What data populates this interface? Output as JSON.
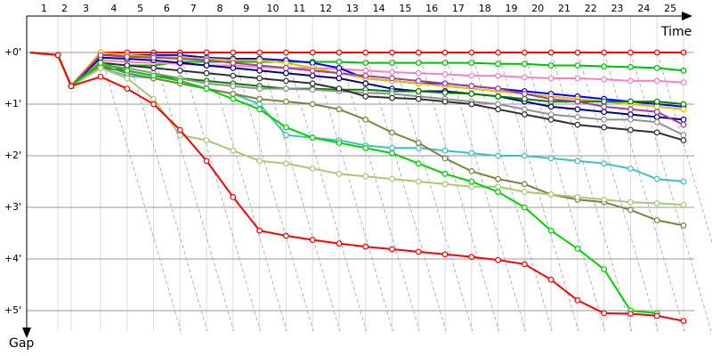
{
  "chart_data": {
    "type": "line",
    "x_label": "Time",
    "y_label": "Gap",
    "categories": [
      "1",
      "2",
      "3",
      "4",
      "5",
      "6",
      "7",
      "8",
      "9",
      "10",
      "11",
      "12",
      "13",
      "14",
      "15",
      "16",
      "17",
      "18",
      "19",
      "20",
      "21",
      "22",
      "23",
      "24",
      "25"
    ],
    "ylim": [
      -0.5,
      5.5
    ],
    "yticks": [
      {
        "value": 0,
        "label": "+0'"
      },
      {
        "value": 1,
        "label": "+1'"
      },
      {
        "value": 2,
        "label": "+2'"
      },
      {
        "value": 3,
        "label": "+3'"
      },
      {
        "value": 4,
        "label": "+4'"
      },
      {
        "value": 5,
        "label": "+5'"
      }
    ],
    "grid": true,
    "series": [
      {
        "color": "#ff0000",
        "values": [
          0.05,
          0.65,
          0,
          0,
          0,
          0,
          0,
          0,
          0,
          0,
          0,
          0,
          0,
          0,
          0,
          0,
          0,
          0,
          0,
          0,
          0,
          0,
          0,
          0,
          0
        ]
      },
      {
        "color": "#00c000",
        "values": [
          0.05,
          0.65,
          0.2,
          0.25,
          0.25,
          0.18,
          0.18,
          0.18,
          0.18,
          0.18,
          0.18,
          0.18,
          0.2,
          0.2,
          0.2,
          0.2,
          0.2,
          0.22,
          0.22,
          0.25,
          0.25,
          0.27,
          0.28,
          0.3,
          0.35
        ]
      },
      {
        "color": "#ff80c0",
        "values": [
          0.05,
          0.65,
          0.15,
          0.18,
          0.2,
          0.22,
          0.25,
          0.25,
          0.28,
          0.3,
          0.3,
          0.32,
          0.35,
          0.38,
          0.4,
          0.42,
          0.45,
          0.45,
          0.48,
          0.5,
          0.5,
          0.52,
          0.55,
          0.55,
          0.58
        ]
      },
      {
        "color": "#0000ff",
        "values": [
          0.05,
          0.65,
          0.05,
          0.05,
          0.05,
          0.05,
          0.1,
          0.12,
          0.12,
          0.15,
          0.2,
          0.3,
          0.5,
          0.55,
          0.6,
          0.6,
          0.65,
          0.7,
          0.75,
          0.8,
          0.85,
          0.9,
          0.95,
          1.0,
          1.05
        ]
      },
      {
        "color": "#e0c000",
        "values": [
          0.05,
          0.65,
          0,
          0.05,
          0.08,
          0.1,
          0.12,
          0.15,
          0.15,
          0.2,
          0.3,
          0.4,
          0.5,
          0.55,
          0.6,
          0.65,
          0.7,
          0.75,
          0.8,
          0.85,
          0.9,
          0.95,
          1.0,
          1.05,
          1.1
        ]
      },
      {
        "color": "#000080",
        "values": [
          0.05,
          0.65,
          0.1,
          0.12,
          0.15,
          0.2,
          0.25,
          0.3,
          0.35,
          0.4,
          0.45,
          0.5,
          0.6,
          0.7,
          0.75,
          0.75,
          0.8,
          0.85,
          0.95,
          1.05,
          1.1,
          1.15,
          1.2,
          1.25,
          1.3
        ]
      },
      {
        "color": "#008000",
        "values": [
          0.05,
          0.65,
          0.3,
          0.35,
          0.45,
          0.5,
          0.55,
          0.6,
          0.65,
          0.7,
          0.7,
          0.72,
          0.72,
          0.75,
          0.75,
          0.78,
          0.8,
          0.85,
          0.9,
          0.95,
          0.95,
          0.95,
          0.95,
          0.95,
          1.0
        ]
      },
      {
        "color": "#a040a0",
        "values": [
          0.05,
          0.65,
          0.05,
          0.08,
          0.1,
          0.12,
          0.15,
          0.2,
          0.25,
          0.3,
          0.35,
          0.4,
          0.45,
          0.5,
          0.55,
          0.6,
          0.65,
          0.7,
          0.8,
          0.9,
          0.95,
          1.05,
          1.1,
          1.15,
          1.4
        ]
      },
      {
        "color": "#909090",
        "values": [
          0.05,
          0.65,
          0.25,
          0.3,
          0.4,
          0.5,
          0.6,
          0.65,
          0.7,
          0.7,
          0.72,
          0.75,
          0.78,
          0.8,
          0.85,
          0.9,
          0.95,
          1.0,
          1.1,
          1.2,
          1.25,
          1.3,
          1.3,
          1.35,
          1.6
        ]
      },
      {
        "color": "#303030",
        "values": [
          0.05,
          0.65,
          0.2,
          0.25,
          0.3,
          0.35,
          0.4,
          0.45,
          0.5,
          0.55,
          0.6,
          0.7,
          0.85,
          0.88,
          0.9,
          0.95,
          1.0,
          1.1,
          1.2,
          1.3,
          1.4,
          1.45,
          1.5,
          1.55,
          1.7
        ]
      },
      {
        "color": "#40c0c0",
        "values": [
          0.05,
          0.65,
          0.3,
          0.45,
          0.5,
          0.6,
          0.7,
          0.8,
          1.0,
          1.6,
          1.65,
          1.7,
          1.8,
          1.85,
          1.85,
          1.9,
          1.95,
          2.0,
          2.0,
          2.05,
          2.1,
          2.15,
          2.25,
          2.45,
          2.5
        ]
      },
      {
        "color": "#808040",
        "values": [
          0.05,
          0.65,
          0.25,
          0.4,
          0.5,
          0.6,
          0.7,
          0.8,
          0.9,
          0.95,
          1.0,
          1.1,
          1.3,
          1.55,
          1.75,
          2.05,
          2.3,
          2.45,
          2.55,
          2.75,
          2.85,
          2.9,
          3.05,
          3.25,
          3.35
        ]
      },
      {
        "color": "#a8c878",
        "values": [
          0.05,
          0.65,
          0.3,
          0.5,
          0.9,
          1.6,
          1.7,
          1.9,
          2.1,
          2.15,
          2.25,
          2.35,
          2.4,
          2.45,
          2.5,
          2.55,
          2.6,
          2.6,
          2.7,
          2.75,
          2.8,
          2.85,
          2.9,
          2.92,
          2.95
        ]
      },
      {
        "color": "#00d000",
        "values": [
          0.05,
          0.65,
          0.2,
          0.35,
          0.45,
          0.55,
          0.7,
          0.9,
          1.1,
          1.45,
          1.65,
          1.75,
          1.85,
          1.95,
          2.15,
          2.35,
          2.5,
          2.7,
          3.0,
          3.45,
          3.8,
          4.2,
          5.0,
          5.05,
          null
        ]
      },
      {
        "color": "#ff0000",
        "values": [
          0.05,
          0.65,
          0.47,
          0.7,
          1.0,
          1.5,
          2.1,
          2.8,
          3.45,
          3.55,
          3.63,
          3.7,
          3.76,
          3.81,
          3.86,
          3.91,
          3.96,
          4.02,
          4.1,
          4.4,
          4.8,
          5.05,
          5.06,
          5.1,
          5.2
        ]
      }
    ]
  }
}
